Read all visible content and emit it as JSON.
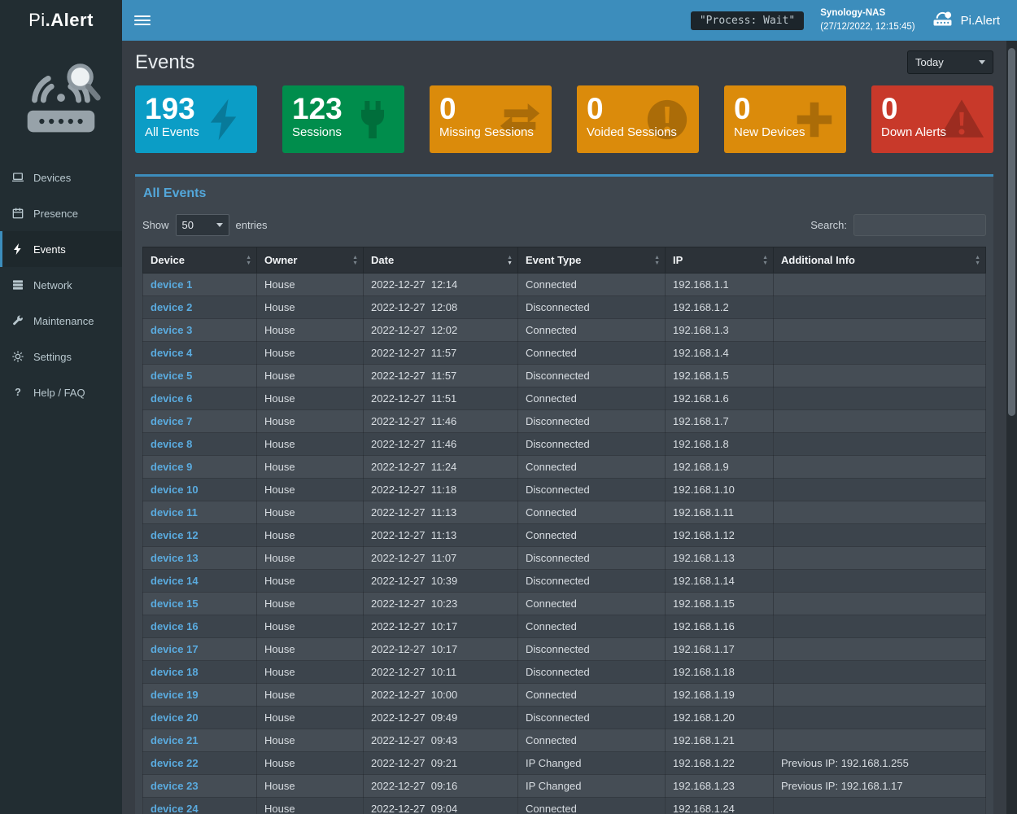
{
  "colors": {
    "navbar": "#3c8dbc",
    "accent": "#3c8dbc",
    "link": "#5aabdf",
    "sidebar": "#222d32"
  },
  "app": {
    "brand_light": "Pi",
    "brand_bold": ".Alert",
    "process_badge": "\"Process: Wait\"",
    "host_name": "Synology-NAS",
    "host_time": "(27/12/2022, 12:15:45)",
    "navbar_brand": "Pi.Alert"
  },
  "sidebar": {
    "items": [
      {
        "label": "Devices"
      },
      {
        "label": "Presence"
      },
      {
        "label": "Events",
        "active": true
      },
      {
        "label": "Network"
      },
      {
        "label": "Maintenance"
      },
      {
        "label": "Settings"
      },
      {
        "label": "Help / FAQ"
      }
    ]
  },
  "page": {
    "title": "Events",
    "period": "Today"
  },
  "cards": [
    {
      "value": "193",
      "label": "All Events",
      "color": "#0b9dc6",
      "icon": "bolt"
    },
    {
      "value": "123",
      "label": "Sessions",
      "color": "#008d4c",
      "icon": "plug"
    },
    {
      "value": "0",
      "label": "Missing Sessions",
      "color": "#db8b0b",
      "icon": "exchange"
    },
    {
      "value": "0",
      "label": "Voided Sessions",
      "color": "#db8b0b",
      "icon": "alert-circle"
    },
    {
      "value": "0",
      "label": "New Devices",
      "color": "#db8b0b",
      "icon": "plus"
    },
    {
      "value": "0",
      "label": "Down Alerts",
      "color": "#c8392a",
      "icon": "warning-triangle"
    }
  ],
  "panel": {
    "title": "All Events",
    "show_label": "Show",
    "entries_label": "entries",
    "page_size": "50",
    "search_label": "Search:",
    "search_value": ""
  },
  "table": {
    "columns": [
      "Device",
      "Owner",
      "Date",
      "Event Type",
      "IP",
      "Additional Info"
    ],
    "sorted_column": "Date",
    "rows": [
      {
        "device": "device 1",
        "owner": "House",
        "datetime": "2022-12-27  12:14",
        "event": "Connected",
        "ip": "192.168.1.1",
        "info": ""
      },
      {
        "device": "device 2",
        "owner": "House",
        "datetime": "2022-12-27  12:08",
        "event": "Disconnected",
        "ip": "192.168.1.2",
        "info": ""
      },
      {
        "device": "device 3",
        "owner": "House",
        "datetime": "2022-12-27  12:02",
        "event": "Connected",
        "ip": "192.168.1.3",
        "info": ""
      },
      {
        "device": "device 4",
        "owner": "House",
        "datetime": "2022-12-27  11:57",
        "event": "Connected",
        "ip": "192.168.1.4",
        "info": ""
      },
      {
        "device": "device 5",
        "owner": "House",
        "datetime": "2022-12-27  11:57",
        "event": "Disconnected",
        "ip": "192.168.1.5",
        "info": ""
      },
      {
        "device": "device 6",
        "owner": "House",
        "datetime": "2022-12-27  11:51",
        "event": "Connected",
        "ip": "192.168.1.6",
        "info": ""
      },
      {
        "device": "device 7",
        "owner": "House",
        "datetime": "2022-12-27  11:46",
        "event": "Disconnected",
        "ip": "192.168.1.7",
        "info": ""
      },
      {
        "device": "device 8",
        "owner": "House",
        "datetime": "2022-12-27  11:46",
        "event": "Disconnected",
        "ip": "192.168.1.8",
        "info": ""
      },
      {
        "device": "device 9",
        "owner": "House",
        "datetime": "2022-12-27  11:24",
        "event": "Connected",
        "ip": "192.168.1.9",
        "info": ""
      },
      {
        "device": "device 10",
        "owner": "House",
        "datetime": "2022-12-27  11:18",
        "event": "Disconnected",
        "ip": "192.168.1.10",
        "info": ""
      },
      {
        "device": "device 11",
        "owner": "House",
        "datetime": "2022-12-27  11:13",
        "event": "Connected",
        "ip": "192.168.1.11",
        "info": ""
      },
      {
        "device": "device 12",
        "owner": "House",
        "datetime": "2022-12-27  11:13",
        "event": "Connected",
        "ip": "192.168.1.12",
        "info": ""
      },
      {
        "device": "device 13",
        "owner": "House",
        "datetime": "2022-12-27  11:07",
        "event": "Disconnected",
        "ip": "192.168.1.13",
        "info": ""
      },
      {
        "device": "device 14",
        "owner": "House",
        "datetime": "2022-12-27  10:39",
        "event": "Disconnected",
        "ip": "192.168.1.14",
        "info": ""
      },
      {
        "device": "device 15",
        "owner": "House",
        "datetime": "2022-12-27  10:23",
        "event": "Connected",
        "ip": "192.168.1.15",
        "info": ""
      },
      {
        "device": "device 16",
        "owner": "House",
        "datetime": "2022-12-27  10:17",
        "event": "Connected",
        "ip": "192.168.1.16",
        "info": ""
      },
      {
        "device": "device 17",
        "owner": "House",
        "datetime": "2022-12-27  10:17",
        "event": "Disconnected",
        "ip": "192.168.1.17",
        "info": ""
      },
      {
        "device": "device 18",
        "owner": "House",
        "datetime": "2022-12-27  10:11",
        "event": "Disconnected",
        "ip": "192.168.1.18",
        "info": ""
      },
      {
        "device": "device 19",
        "owner": "House",
        "datetime": "2022-12-27  10:00",
        "event": "Connected",
        "ip": "192.168.1.19",
        "info": ""
      },
      {
        "device": "device 20",
        "owner": "House",
        "datetime": "2022-12-27  09:49",
        "event": "Disconnected",
        "ip": "192.168.1.20",
        "info": ""
      },
      {
        "device": "device 21",
        "owner": "House",
        "datetime": "2022-12-27  09:43",
        "event": "Connected",
        "ip": "192.168.1.21",
        "info": ""
      },
      {
        "device": "device 22",
        "owner": "House",
        "datetime": "2022-12-27  09:21",
        "event": "IP Changed",
        "ip": "192.168.1.22",
        "info": "Previous IP: 192.168.1.255"
      },
      {
        "device": "device 23",
        "owner": "House",
        "datetime": "2022-12-27  09:16",
        "event": "IP Changed",
        "ip": "192.168.1.23",
        "info": "Previous IP: 192.168.1.17"
      },
      {
        "device": "device 24",
        "owner": "House",
        "datetime": "2022-12-27  09:04",
        "event": "Connected",
        "ip": "192.168.1.24",
        "info": ""
      }
    ]
  }
}
